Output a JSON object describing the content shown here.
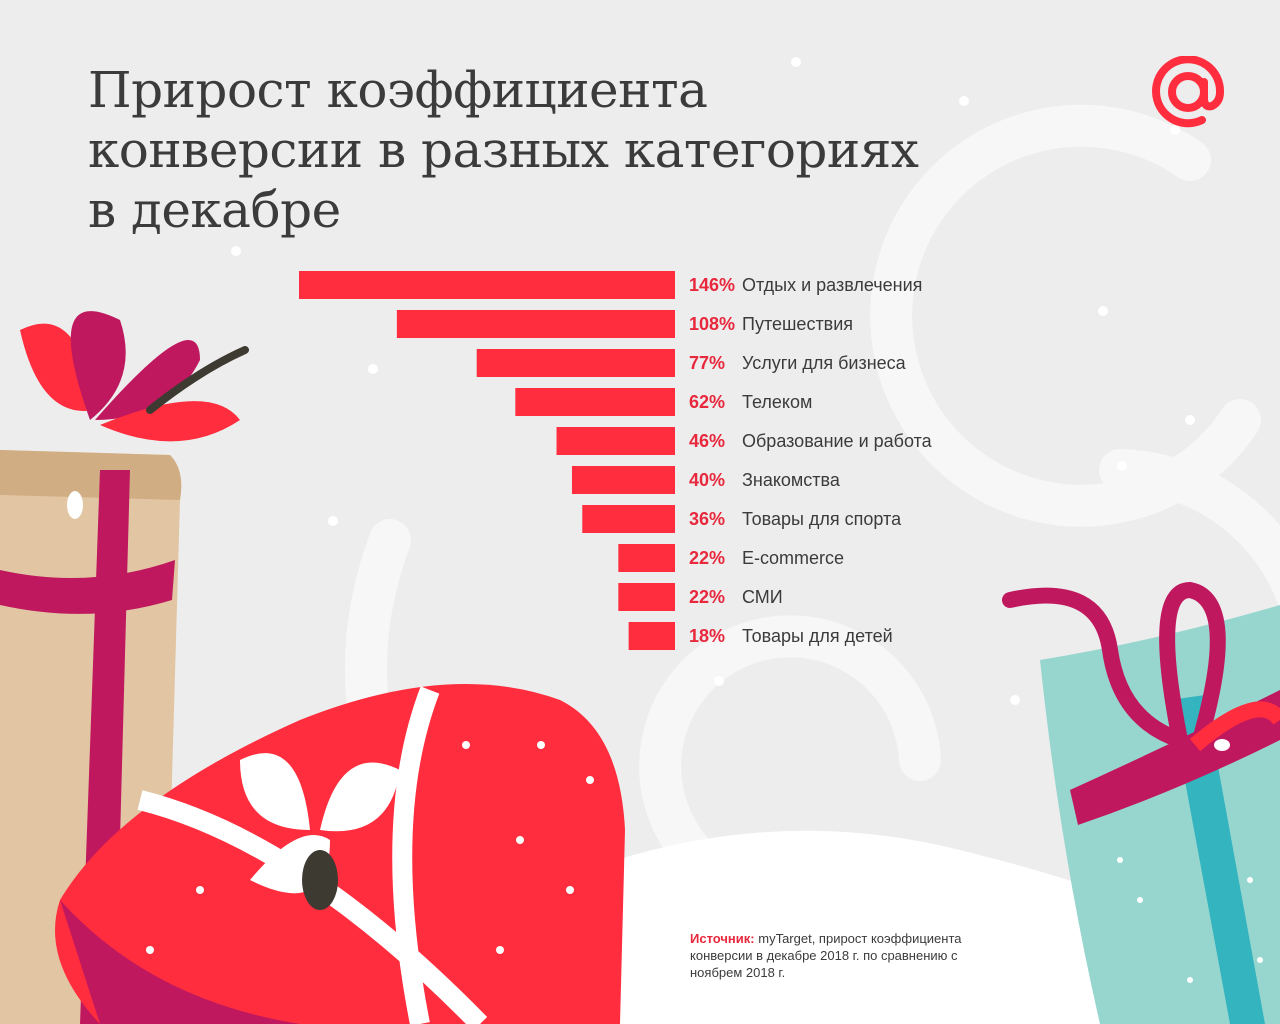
{
  "header": {
    "title_lines": [
      "Прирост коэффициента",
      "конверсии в разных категориях",
      "в декабре"
    ]
  },
  "logo": {
    "icon": "at-sign-icon",
    "color": "#ff2d3d"
  },
  "source": {
    "label": "Источник:",
    "text": " myTarget, прирост коэффициента конверсии в декабре 2018 г. по сравнению с ноябрем 2018 г."
  },
  "colors": {
    "bar": "#ff2d3d",
    "value_text": "#e8283c",
    "label_text": "#3b3b3b"
  },
  "chart_data": {
    "type": "bar",
    "orientation": "horizontal",
    "unit": "%",
    "categories": [
      "Отдых и развлечения",
      "Путешествия",
      "Услуги для бизнеса",
      "Телеком",
      "Образование и работа",
      "Знакомства",
      "Товары для спорта",
      "E-commerce",
      "СМИ",
      "Товары для детей"
    ],
    "values": [
      146,
      108,
      77,
      62,
      46,
      40,
      36,
      22,
      22,
      18
    ],
    "value_labels": [
      "146%",
      "108%",
      "77%",
      "62%",
      "46%",
      "40%",
      "36%",
      "22%",
      "22%",
      "18%"
    ],
    "grid": false,
    "legend": "none"
  }
}
